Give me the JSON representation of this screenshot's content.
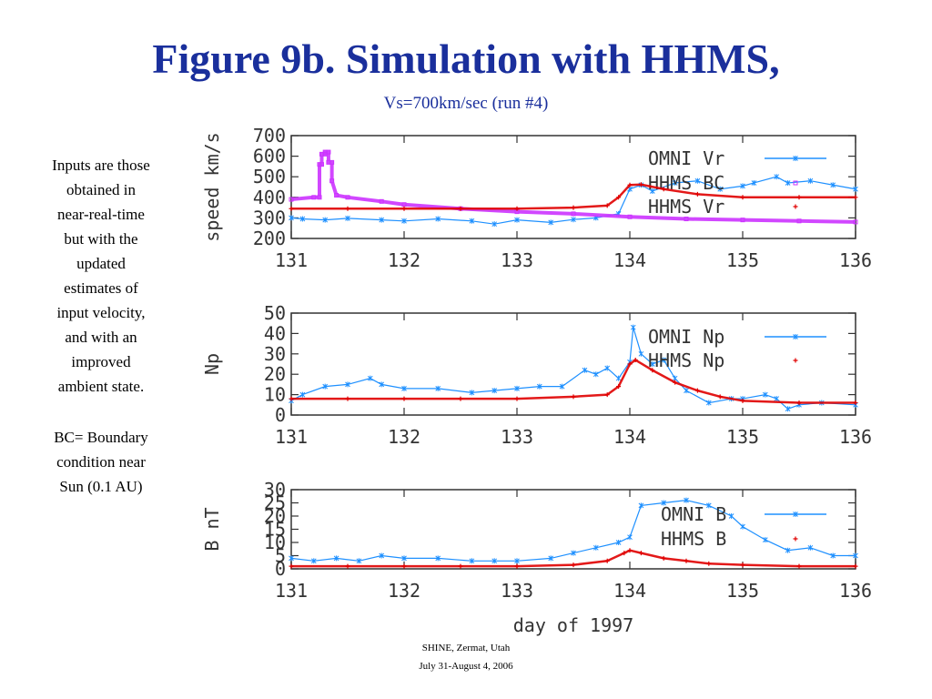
{
  "slide": {
    "title": "Figure 9b.  Simulation with HHMS,",
    "subtitle": "Vs=700km/sec (run #4)",
    "note1": [
      "Inputs are those",
      "obtained in",
      "near-real-time",
      "but with the",
      "updated",
      "estimates of",
      "input velocity,",
      "and with an",
      "improved",
      "ambient state."
    ],
    "note2": [
      "BC= Boundary",
      "condition near",
      "Sun (0.1 AU)"
    ],
    "footer1": "SHINE, Zermat, Utah",
    "footer2": "July 31-August 4, 2006"
  },
  "colors": {
    "omni": "#1e90ff",
    "hhms": "#e00000",
    "bc": "#cc33ff",
    "axis": "#333333"
  },
  "chart_data": [
    {
      "type": "line",
      "ylabel": "speed km/s",
      "xlabel": "",
      "xlim": [
        131,
        136
      ],
      "ylim": [
        200,
        700
      ],
      "xticks": [
        "131",
        "132",
        "133",
        "134",
        "135",
        "136"
      ],
      "yticks": [
        "200",
        "300",
        "400",
        "500",
        "600",
        "700"
      ],
      "series": [
        {
          "name": "OMNI Vr",
          "style": "omni",
          "x": [
            131.0,
            131.1,
            131.3,
            131.5,
            131.8,
            132.0,
            132.3,
            132.6,
            132.8,
            133.0,
            133.3,
            133.5,
            133.7,
            133.9,
            134.0,
            134.1,
            134.2,
            134.4,
            134.6,
            134.8,
            135.0,
            135.1,
            135.3,
            135.4,
            135.6,
            135.8,
            136.0
          ],
          "y": [
            300,
            295,
            290,
            298,
            290,
            285,
            295,
            285,
            270,
            290,
            278,
            292,
            300,
            320,
            440,
            460,
            430,
            470,
            480,
            440,
            455,
            470,
            500,
            470,
            480,
            460,
            440
          ]
        },
        {
          "name": "HHMS BC",
          "style": "bc",
          "x": [
            131.0,
            131.2,
            131.25,
            131.25,
            131.27,
            131.27,
            131.3,
            131.3,
            131.33,
            131.33,
            131.36,
            131.36,
            131.4,
            131.5,
            131.8,
            132.0,
            132.5,
            133.0,
            133.5,
            134.0,
            134.5,
            135.0,
            135.5,
            136.0
          ],
          "y": [
            390,
            400,
            400,
            560,
            560,
            610,
            610,
            620,
            620,
            570,
            570,
            480,
            410,
            400,
            380,
            365,
            345,
            330,
            320,
            305,
            295,
            290,
            285,
            280
          ]
        },
        {
          "name": "HHMS Vr",
          "style": "hhms",
          "x": [
            131.0,
            131.5,
            132.0,
            132.5,
            133.0,
            133.5,
            133.8,
            133.9,
            134.0,
            134.1,
            134.3,
            134.6,
            135.0,
            135.5,
            136.0
          ],
          "y": [
            345,
            345,
            345,
            345,
            345,
            350,
            360,
            400,
            460,
            462,
            440,
            415,
            400,
            400,
            400
          ]
        }
      ]
    },
    {
      "type": "line",
      "ylabel": "Np",
      "xlabel": "",
      "xlim": [
        131,
        136
      ],
      "ylim": [
        0,
        50
      ],
      "xticks": [
        "131",
        "132",
        "133",
        "134",
        "135",
        "136"
      ],
      "yticks": [
        "0",
        "10",
        "20",
        "30",
        "40",
        "50"
      ],
      "series": [
        {
          "name": "OMNI Np",
          "style": "omni",
          "x": [
            131.0,
            131.1,
            131.3,
            131.5,
            131.7,
            131.8,
            132.0,
            132.3,
            132.6,
            132.8,
            133.0,
            133.2,
            133.4,
            133.6,
            133.7,
            133.8,
            133.9,
            134.0,
            134.03,
            134.1,
            134.2,
            134.3,
            134.4,
            134.5,
            134.7,
            134.9,
            135.0,
            135.2,
            135.3,
            135.4,
            135.5,
            135.7,
            136.0
          ],
          "y": [
            7,
            10,
            14,
            15,
            18,
            15,
            13,
            13,
            11,
            12,
            13,
            14,
            14,
            22,
            20,
            23,
            18,
            26,
            43,
            30,
            25,
            27,
            18,
            12,
            6,
            8,
            8,
            10,
            8,
            3,
            5,
            6,
            5
          ]
        },
        {
          "name": "HHMS Np",
          "style": "hhms",
          "x": [
            131.0,
            131.5,
            132.0,
            132.5,
            133.0,
            133.5,
            133.8,
            133.9,
            134.0,
            134.05,
            134.2,
            134.4,
            134.6,
            134.8,
            135.0,
            135.5,
            136.0
          ],
          "y": [
            8,
            8,
            8,
            8,
            8,
            9,
            10,
            14,
            25,
            27,
            22,
            16,
            12,
            9,
            7,
            6,
            6
          ]
        }
      ]
    },
    {
      "type": "line",
      "ylabel": "B nT",
      "xlabel": "day of 1997",
      "xlim": [
        131,
        136
      ],
      "ylim": [
        0,
        30
      ],
      "xticks": [
        "131",
        "132",
        "133",
        "134",
        "135",
        "136"
      ],
      "yticks": [
        "0",
        "5",
        "10",
        "15",
        "20",
        "25",
        "30"
      ],
      "series": [
        {
          "name": "OMNI B",
          "style": "omni",
          "x": [
            131.0,
            131.2,
            131.4,
            131.6,
            131.8,
            132.0,
            132.3,
            132.6,
            132.8,
            133.0,
            133.3,
            133.5,
            133.7,
            133.9,
            134.0,
            134.1,
            134.3,
            134.5,
            134.7,
            134.9,
            135.0,
            135.2,
            135.4,
            135.6,
            135.8,
            136.0
          ],
          "y": [
            4,
            3,
            4,
            3,
            5,
            4,
            4,
            3,
            3,
            3,
            4,
            6,
            8,
            10,
            12,
            24,
            25,
            26,
            24,
            20,
            16,
            11,
            7,
            8,
            5,
            5
          ]
        },
        {
          "name": "HHMS B",
          "style": "hhms",
          "x": [
            131.0,
            131.5,
            132.0,
            132.5,
            133.0,
            133.5,
            133.8,
            133.95,
            134.0,
            134.1,
            134.3,
            134.5,
            134.7,
            135.0,
            135.5,
            136.0
          ],
          "y": [
            1,
            1,
            1,
            1,
            1,
            1.5,
            3,
            6,
            7,
            6,
            4,
            3,
            2,
            1.5,
            1,
            1
          ]
        }
      ]
    }
  ]
}
